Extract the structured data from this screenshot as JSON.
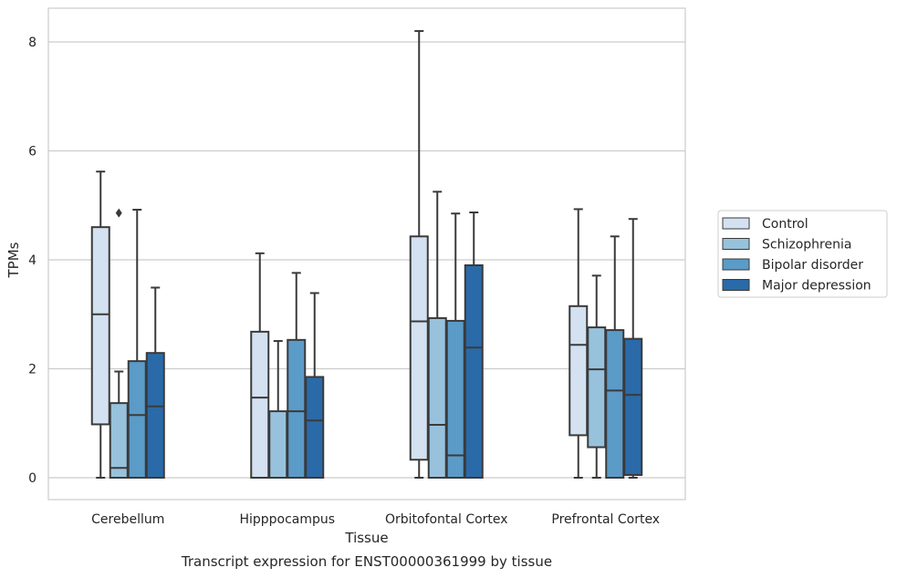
{
  "caption": "Transcript expression for ENST00000361999 by tissue",
  "chart_data": {
    "type": "box",
    "xlabel": "Tissue",
    "ylabel": "TPMs",
    "ylim": [
      -0.4,
      8.6
    ],
    "yticks": [
      0,
      2,
      4,
      6,
      8
    ],
    "grid": "horizontal",
    "legend_position": "right",
    "categories": [
      "Cerebellum",
      "Hipppocampus",
      "Orbitofontal Cortex",
      "Prefrontal Cortex"
    ],
    "series": [
      {
        "name": "Control",
        "color": "#d3e1f0",
        "boxes": [
          {
            "whislo": 0.0,
            "q1": 0.98,
            "med": 3.0,
            "q3": 4.6,
            "whishi": 5.62,
            "fliers": []
          },
          {
            "whislo": 0.0,
            "q1": 0.0,
            "med": 1.47,
            "q3": 2.68,
            "whishi": 4.12,
            "fliers": []
          },
          {
            "whislo": 0.0,
            "q1": 0.33,
            "med": 2.87,
            "q3": 4.43,
            "whishi": 8.2,
            "fliers": []
          },
          {
            "whislo": 0.0,
            "q1": 0.78,
            "med": 2.44,
            "q3": 3.15,
            "whishi": 4.93,
            "fliers": []
          }
        ]
      },
      {
        "name": "Schizophrenia",
        "color": "#98c2dc",
        "boxes": [
          {
            "whislo": 0.0,
            "q1": 0.0,
            "med": 0.18,
            "q3": 1.37,
            "whishi": 1.95,
            "fliers": [
              4.86
            ]
          },
          {
            "whislo": 0.0,
            "q1": 0.0,
            "med": 0.0,
            "q3": 1.22,
            "whishi": 2.51,
            "fliers": []
          },
          {
            "whislo": 0.0,
            "q1": 0.0,
            "med": 0.97,
            "q3": 2.93,
            "whishi": 5.25,
            "fliers": []
          },
          {
            "whislo": 0.0,
            "q1": 0.56,
            "med": 1.99,
            "q3": 2.76,
            "whishi": 3.71,
            "fliers": []
          }
        ]
      },
      {
        "name": "Bipolar disorder",
        "color": "#5b9bc8",
        "boxes": [
          {
            "whislo": 0.0,
            "q1": 0.0,
            "med": 1.15,
            "q3": 2.14,
            "whishi": 4.92,
            "fliers": []
          },
          {
            "whislo": 0.0,
            "q1": 0.0,
            "med": 1.22,
            "q3": 2.53,
            "whishi": 3.76,
            "fliers": []
          },
          {
            "whislo": 0.0,
            "q1": 0.0,
            "med": 0.41,
            "q3": 2.88,
            "whishi": 4.85,
            "fliers": []
          },
          {
            "whislo": 0.0,
            "q1": 0.0,
            "med": 1.6,
            "q3": 2.71,
            "whishi": 4.43,
            "fliers": []
          }
        ]
      },
      {
        "name": "Major depression",
        "color": "#2a6aa9",
        "boxes": [
          {
            "whislo": 0.0,
            "q1": 0.0,
            "med": 1.31,
            "q3": 2.29,
            "whishi": 3.49,
            "fliers": []
          },
          {
            "whislo": 0.0,
            "q1": 0.0,
            "med": 1.05,
            "q3": 1.85,
            "whishi": 3.39,
            "fliers": []
          },
          {
            "whislo": 0.0,
            "q1": 0.0,
            "med": 2.39,
            "q3": 3.9,
            "whishi": 4.87,
            "fliers": []
          },
          {
            "whislo": 0.0,
            "q1": 0.05,
            "med": 1.52,
            "q3": 2.55,
            "whishi": 4.75,
            "fliers": []
          }
        ]
      }
    ]
  }
}
